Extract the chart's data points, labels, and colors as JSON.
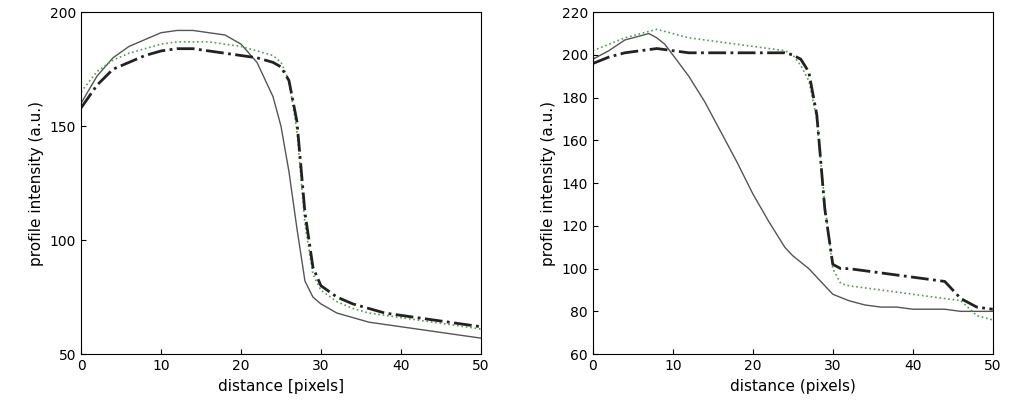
{
  "left": {
    "ylim": [
      50,
      200
    ],
    "xlim": [
      0,
      50
    ],
    "yticks": [
      50,
      100,
      150,
      200
    ],
    "xticks": [
      0,
      10,
      20,
      30,
      40,
      50
    ],
    "ylabel": "profile intensity (a.u.)",
    "xlabel": "distance [pixels]",
    "solid": {
      "x": [
        0,
        2,
        4,
        6,
        8,
        10,
        12,
        14,
        16,
        18,
        20,
        22,
        24,
        25,
        26,
        27,
        28,
        29,
        30,
        32,
        34,
        36,
        38,
        40,
        42,
        44,
        46,
        48,
        50
      ],
      "y": [
        160,
        172,
        180,
        185,
        188,
        191,
        192,
        192,
        191,
        190,
        186,
        178,
        163,
        150,
        130,
        105,
        82,
        75,
        72,
        68,
        66,
        64,
        63,
        62,
        61,
        60,
        59,
        58,
        57
      ]
    },
    "dotted": {
      "x": [
        0,
        2,
        4,
        6,
        8,
        10,
        12,
        14,
        16,
        18,
        20,
        22,
        24,
        25,
        26,
        27,
        28,
        29,
        30,
        32,
        34,
        36,
        38,
        40,
        42,
        44,
        46,
        48,
        50
      ],
      "y": [
        165,
        174,
        179,
        182,
        184,
        186,
        187,
        187,
        187,
        186,
        185,
        183,
        181,
        178,
        170,
        148,
        107,
        85,
        78,
        73,
        70,
        68,
        67,
        66,
        65,
        64,
        63,
        62,
        61
      ]
    },
    "dashdot": {
      "x": [
        0,
        2,
        4,
        6,
        8,
        10,
        12,
        14,
        16,
        18,
        20,
        22,
        24,
        25,
        26,
        27,
        28,
        29,
        30,
        32,
        34,
        36,
        38,
        40,
        42,
        44,
        46,
        48,
        50
      ],
      "y": [
        158,
        168,
        175,
        178,
        181,
        183,
        184,
        184,
        183,
        182,
        181,
        180,
        178,
        176,
        170,
        152,
        112,
        88,
        80,
        75,
        72,
        70,
        68,
        67,
        66,
        65,
        64,
        63,
        62
      ]
    }
  },
  "right": {
    "ylim": [
      60,
      220
    ],
    "xlim": [
      0,
      50
    ],
    "yticks": [
      60,
      80,
      100,
      120,
      140,
      160,
      180,
      200,
      220
    ],
    "xticks": [
      0,
      10,
      20,
      30,
      40,
      50
    ],
    "ylabel": "profile intensity (a.u.)",
    "xlabel": "distance (pixels)",
    "solid": {
      "x": [
        0,
        2,
        4,
        6,
        7,
        8,
        9,
        10,
        12,
        14,
        16,
        18,
        20,
        22,
        24,
        25,
        26,
        27,
        28,
        29,
        30,
        32,
        34,
        36,
        38,
        40,
        42,
        44,
        46,
        48,
        50
      ],
      "y": [
        198,
        202,
        207,
        209,
        210,
        208,
        205,
        200,
        190,
        178,
        164,
        150,
        135,
        122,
        110,
        106,
        103,
        100,
        96,
        92,
        88,
        85,
        83,
        82,
        82,
        81,
        81,
        81,
        80,
        80,
        80
      ]
    },
    "dotted": {
      "x": [
        0,
        2,
        4,
        6,
        8,
        10,
        12,
        14,
        16,
        18,
        20,
        22,
        24,
        25,
        26,
        27,
        28,
        29,
        30,
        31,
        32,
        34,
        36,
        38,
        40,
        42,
        44,
        46,
        48,
        50
      ],
      "y": [
        202,
        205,
        208,
        210,
        212,
        210,
        208,
        207,
        206,
        205,
        204,
        203,
        202,
        200,
        195,
        188,
        170,
        130,
        100,
        93,
        92,
        91,
        90,
        89,
        88,
        87,
        86,
        85,
        78,
        76
      ]
    },
    "dashdot": {
      "x": [
        0,
        2,
        4,
        6,
        8,
        10,
        12,
        14,
        16,
        18,
        20,
        22,
        24,
        25,
        26,
        27,
        28,
        29,
        30,
        31,
        32,
        34,
        36,
        38,
        40,
        42,
        44,
        46,
        48,
        50
      ],
      "y": [
        196,
        199,
        201,
        202,
        203,
        202,
        201,
        201,
        201,
        201,
        201,
        201,
        201,
        200,
        198,
        192,
        172,
        128,
        102,
        100,
        100,
        99,
        98,
        97,
        96,
        95,
        94,
        86,
        82,
        81
      ]
    }
  },
  "line_color_solid": "#555555",
  "line_color_dotted": "#5a9a5a",
  "line_color_dashdot": "#222222",
  "lw_solid": 1.0,
  "lw_dotted": 1.2,
  "lw_dashdot": 2.0
}
